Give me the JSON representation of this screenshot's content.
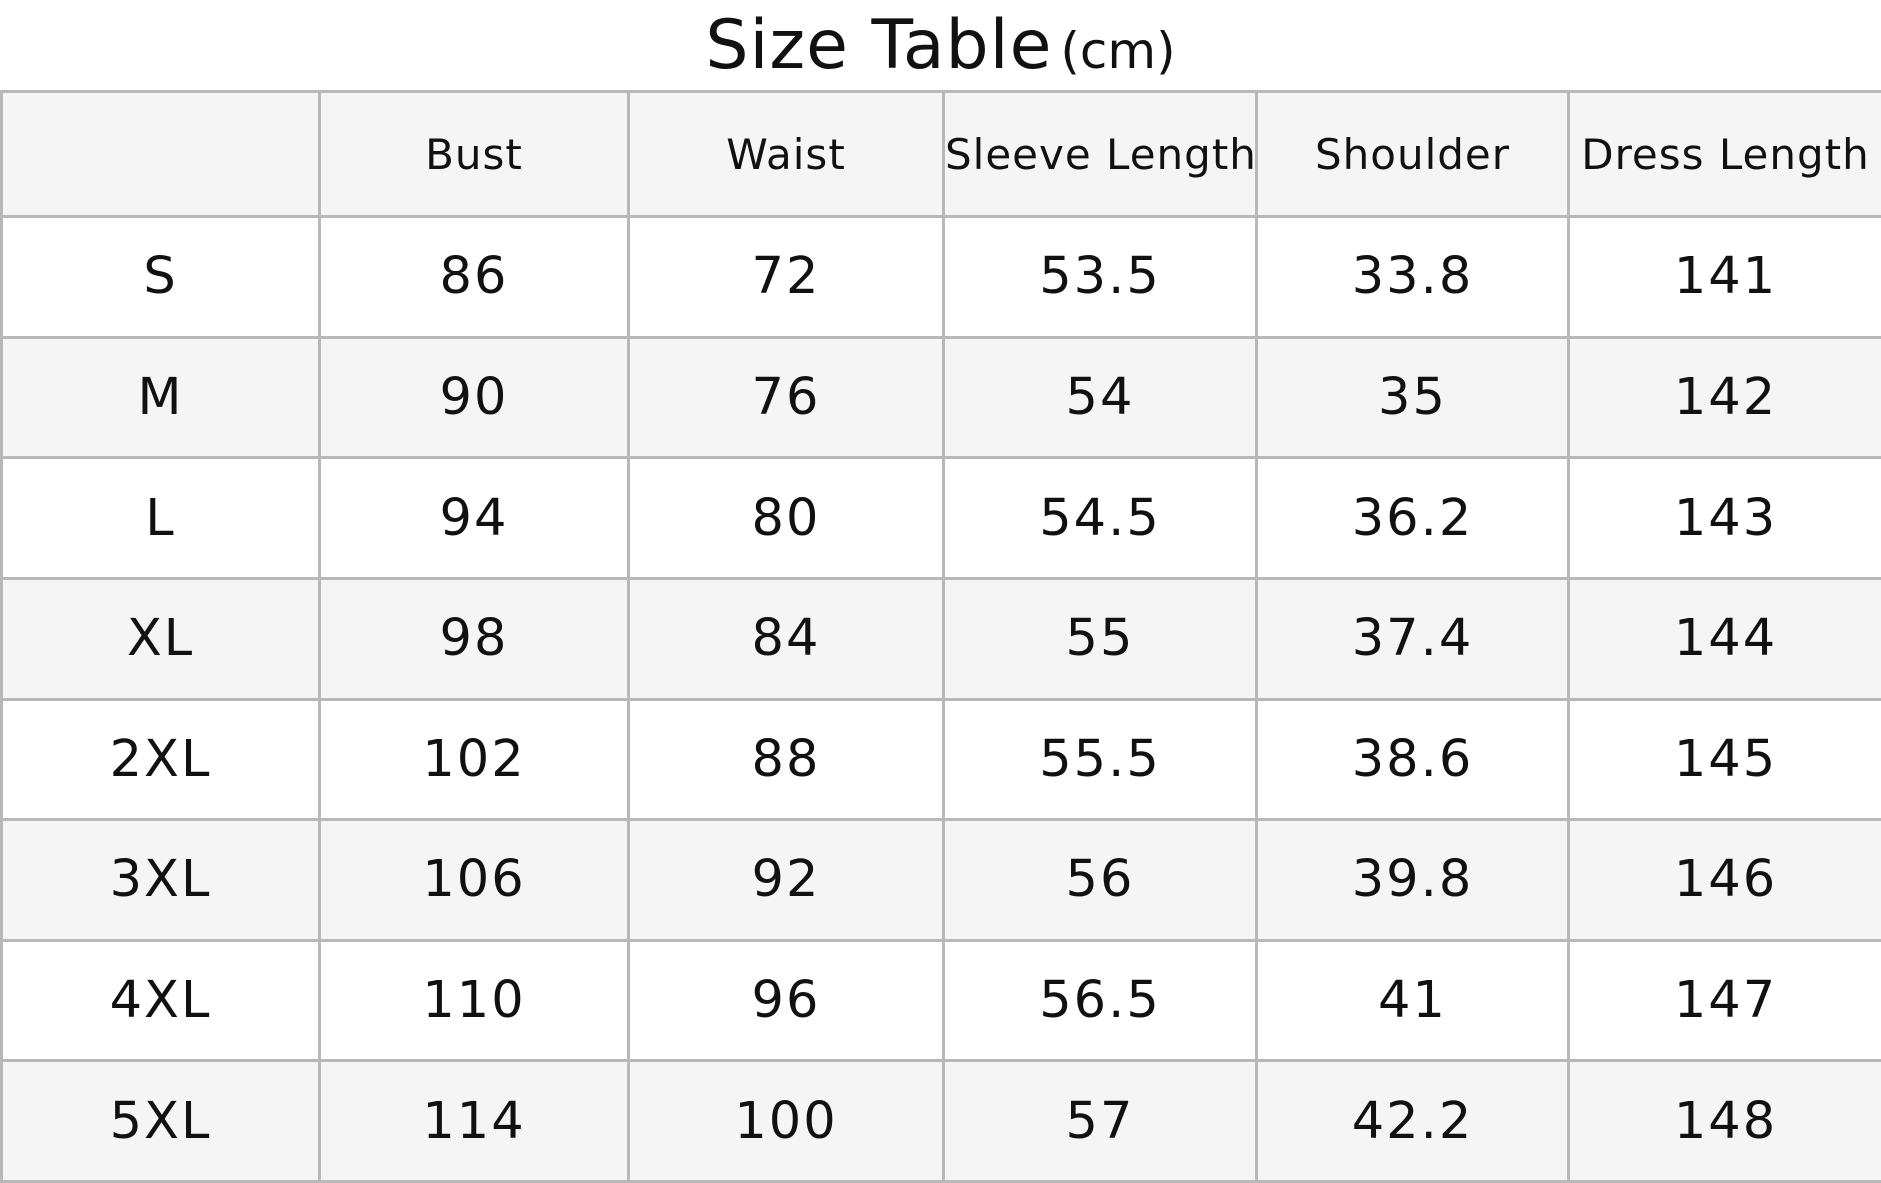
{
  "title": {
    "main": "Size Table",
    "unit": "(cm)"
  },
  "table": {
    "corner": "",
    "columns": [
      "Bust",
      "Waist",
      "Sleeve Length",
      "Shoulder",
      "Dress Length"
    ],
    "rows": [
      {
        "size": "S",
        "values": [
          "86",
          "72",
          "53.5",
          "33.8",
          "141"
        ]
      },
      {
        "size": "M",
        "values": [
          "90",
          "76",
          "54",
          "35",
          "142"
        ]
      },
      {
        "size": "L",
        "values": [
          "94",
          "80",
          "54.5",
          "36.2",
          "143"
        ]
      },
      {
        "size": "XL",
        "values": [
          "98",
          "84",
          "55",
          "37.4",
          "144"
        ]
      },
      {
        "size": "2XL",
        "values": [
          "102",
          "88",
          "55.5",
          "38.6",
          "145"
        ]
      },
      {
        "size": "3XL",
        "values": [
          "106",
          "92",
          "56",
          "39.8",
          "146"
        ]
      },
      {
        "size": "4XL",
        "values": [
          "110",
          "96",
          "56.5",
          "41",
          "147"
        ]
      },
      {
        "size": "5XL",
        "values": [
          "114",
          "100",
          "57",
          "42.2",
          "148"
        ]
      }
    ]
  },
  "colors": {
    "grid_line": "#b8b8b8",
    "header_background": "#f5f5f5",
    "alternate_row_background": "#f5f5f5",
    "row_background": "#ffffff",
    "text": "#111111"
  }
}
